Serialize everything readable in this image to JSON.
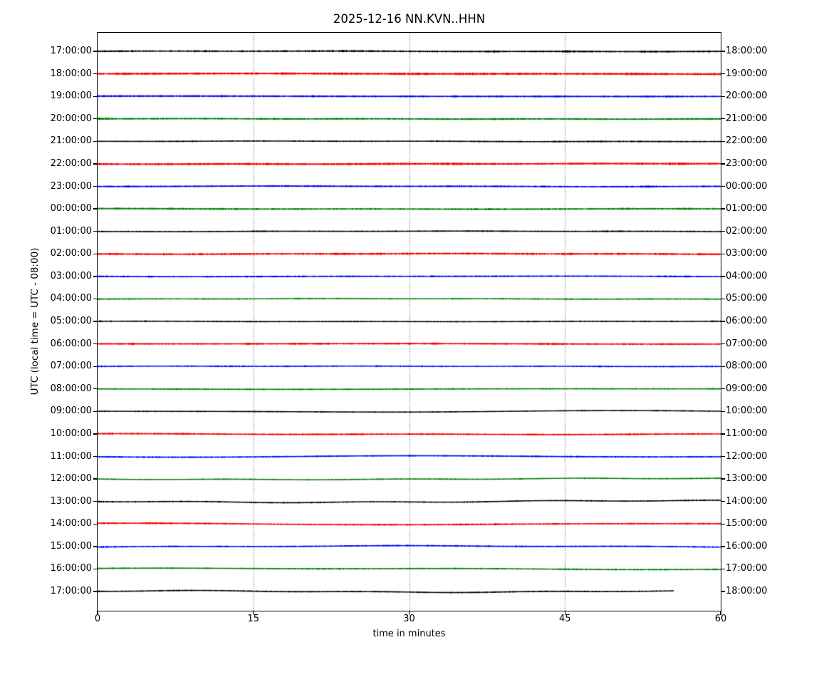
{
  "title": "2025-12-16 NN.KVN..HHN",
  "y_axis": {
    "label": "UTC (local time = UTC - 08:00)",
    "left_side": "UTC start time of each line",
    "right_side": "time at end of each line"
  },
  "x_axis": {
    "label": "time in minutes",
    "range_minutes": [
      0,
      60
    ],
    "ticks": [
      {
        "label": "0",
        "minute": 0
      },
      {
        "label": "15",
        "minute": 15
      },
      {
        "label": "30",
        "minute": 30
      },
      {
        "label": "45",
        "minute": 45
      },
      {
        "label": "60",
        "minute": 60
      }
    ]
  },
  "colors": {
    "trace_cycle": [
      "#000000",
      "#ff0000",
      "#0000ff",
      "#008000"
    ],
    "background": "#ffffff",
    "axis": "#000000",
    "grid": "rgba(0,0,0,0.75)"
  },
  "chart_data": {
    "type": "line",
    "subtype": "helicorder-dayplot",
    "date": "2025-12-16",
    "stream_id": "NN.KVN..HHN",
    "network": "NN",
    "station": "KVN",
    "location": "",
    "channel": "HHN",
    "minutes_per_row": 60,
    "grid_minutes": [
      15,
      30,
      45
    ],
    "grid_style": "dotted-vertical",
    "rows": [
      {
        "utc": "17:00:00",
        "local": "18:00:00",
        "color": "#000000",
        "amp": 1.6,
        "burst": 3.0,
        "meander": 0.3,
        "length": 1.0,
        "seed": 11
      },
      {
        "utc": "18:00:00",
        "local": "19:00:00",
        "color": "#ff0000",
        "amp": 1.9,
        "burst": 3.0,
        "meander": 0.3,
        "length": 1.0,
        "seed": 22
      },
      {
        "utc": "19:00:00",
        "local": "20:00:00",
        "color": "#0000ff",
        "amp": 1.6,
        "burst": 3.2,
        "meander": 0.3,
        "length": 1.0,
        "seed": 33
      },
      {
        "utc": "20:00:00",
        "local": "21:00:00",
        "color": "#008000",
        "amp": 1.6,
        "burst": 2.8,
        "meander": 0.3,
        "length": 1.0,
        "seed": 44
      },
      {
        "utc": "21:00:00",
        "local": "22:00:00",
        "color": "#000000",
        "amp": 1.3,
        "burst": 3.0,
        "meander": 0.3,
        "length": 1.0,
        "seed": 55
      },
      {
        "utc": "22:00:00",
        "local": "23:00:00",
        "color": "#ff0000",
        "amp": 1.9,
        "burst": 2.8,
        "meander": 0.3,
        "length": 1.0,
        "seed": 66
      },
      {
        "utc": "23:00:00",
        "local": "00:00:00",
        "color": "#0000ff",
        "amp": 1.5,
        "burst": 2.8,
        "meander": 0.3,
        "length": 1.0,
        "seed": 77
      },
      {
        "utc": "00:00:00",
        "local": "01:00:00",
        "color": "#008000",
        "amp": 1.6,
        "burst": 2.8,
        "meander": 0.3,
        "length": 1.0,
        "seed": 88
      },
      {
        "utc": "01:00:00",
        "local": "02:00:00",
        "color": "#000000",
        "amp": 1.3,
        "burst": 3.0,
        "meander": 0.3,
        "length": 1.0,
        "seed": 99
      },
      {
        "utc": "02:00:00",
        "local": "03:00:00",
        "color": "#ff0000",
        "amp": 1.7,
        "burst": 3.2,
        "meander": 0.3,
        "length": 1.0,
        "seed": 110
      },
      {
        "utc": "03:00:00",
        "local": "04:00:00",
        "color": "#0000ff",
        "amp": 1.4,
        "burst": 2.8,
        "meander": 0.3,
        "length": 1.0,
        "seed": 121
      },
      {
        "utc": "04:00:00",
        "local": "05:00:00",
        "color": "#008000",
        "amp": 1.3,
        "burst": 2.4,
        "meander": 0.3,
        "length": 1.0,
        "seed": 132
      },
      {
        "utc": "05:00:00",
        "local": "06:00:00",
        "color": "#000000",
        "amp": 1.3,
        "burst": 2.8,
        "meander": 0.3,
        "length": 1.0,
        "seed": 143
      },
      {
        "utc": "06:00:00",
        "local": "07:00:00",
        "color": "#ff0000",
        "amp": 1.6,
        "burst": 2.6,
        "meander": 0.3,
        "length": 1.0,
        "seed": 154
      },
      {
        "utc": "07:00:00",
        "local": "08:00:00",
        "color": "#0000ff",
        "amp": 1.3,
        "burst": 2.6,
        "meander": 0.3,
        "length": 1.0,
        "seed": 165
      },
      {
        "utc": "08:00:00",
        "local": "09:00:00",
        "color": "#008000",
        "amp": 1.3,
        "burst": 2.3,
        "meander": 0.4,
        "length": 1.0,
        "seed": 176
      },
      {
        "utc": "09:00:00",
        "local": "10:00:00",
        "color": "#000000",
        "amp": 1.2,
        "burst": 2.4,
        "meander": 0.8,
        "length": 1.0,
        "seed": 187
      },
      {
        "utc": "10:00:00",
        "local": "11:00:00",
        "color": "#ff0000",
        "amp": 1.5,
        "burst": 2.6,
        "meander": 0.6,
        "length": 1.0,
        "seed": 198
      },
      {
        "utc": "11:00:00",
        "local": "12:00:00",
        "color": "#0000ff",
        "amp": 1.4,
        "burst": 2.4,
        "meander": 0.7,
        "length": 1.0,
        "seed": 209
      },
      {
        "utc": "12:00:00",
        "local": "13:00:00",
        "color": "#008000",
        "amp": 1.3,
        "burst": 2.2,
        "meander": 0.8,
        "length": 1.0,
        "seed": 220
      },
      {
        "utc": "13:00:00",
        "local": "14:00:00",
        "color": "#000000",
        "amp": 1.3,
        "burst": 2.0,
        "meander": 1.2,
        "length": 1.0,
        "seed": 231
      },
      {
        "utc": "14:00:00",
        "local": "15:00:00",
        "color": "#ff0000",
        "amp": 1.5,
        "burst": 2.4,
        "meander": 0.8,
        "length": 1.0,
        "seed": 242
      },
      {
        "utc": "15:00:00",
        "local": "16:00:00",
        "color": "#0000ff",
        "amp": 1.4,
        "burst": 2.2,
        "meander": 0.8,
        "length": 1.0,
        "seed": 253
      },
      {
        "utc": "16:00:00",
        "local": "17:00:00",
        "color": "#008000",
        "amp": 1.4,
        "burst": 2.2,
        "meander": 0.8,
        "length": 1.0,
        "seed": 264
      },
      {
        "utc": "17:00:00",
        "local": "18:00:00",
        "color": "#000000",
        "amp": 1.3,
        "burst": 2.0,
        "meander": 1.0,
        "length": 0.925,
        "seed": 275
      }
    ]
  }
}
